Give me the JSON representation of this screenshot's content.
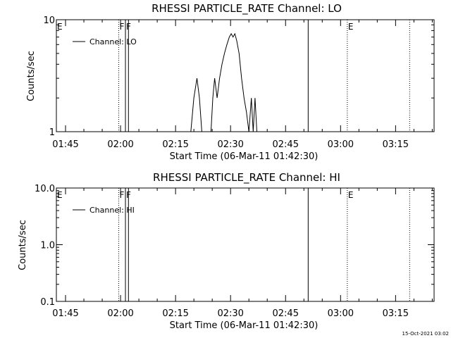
{
  "footer_timestamp": "15-Oct-2021 03:02",
  "chart_data": [
    {
      "type": "line",
      "title": "RHESSI PARTICLE_RATE Channel: LO",
      "xlabel": "Start Time (06-Mar-11 01:42:30)",
      "ylabel": "Counts/sec",
      "y_scale": "log",
      "xlim": [
        "01:42:30",
        "03:25:30"
      ],
      "ylim": [
        1,
        10
      ],
      "x_ticks": [
        "01:45",
        "02:00",
        "02:15",
        "02:30",
        "02:45",
        "03:00",
        "03:15"
      ],
      "y_ticks": [
        {
          "value": 1,
          "label": "1"
        },
        {
          "value": 10,
          "label": "10"
        }
      ],
      "legend": {
        "placement": "top-left",
        "entries": [
          "Channel: LO"
        ]
      },
      "flags": [
        {
          "label": "E",
          "time": "01:42:30",
          "style": "dotted"
        },
        {
          "label": "F",
          "time": "01:59:30",
          "style": "dotted"
        },
        {
          "label": "F",
          "time": "02:01:20",
          "style": "solid"
        },
        {
          "time": "02:51:10",
          "style": "solid"
        },
        {
          "label": "E",
          "time": "03:01:50",
          "style": "dotted"
        },
        {
          "time": "03:18:50",
          "style": "dotted"
        }
      ],
      "series": [
        {
          "name": "Channel: LO",
          "points": [
            [
              "02:01:20",
              1
            ],
            [
              "02:01:20",
              10
            ],
            [
              "02:02:10",
              10
            ],
            [
              "02:02:10",
              1
            ],
            [
              "02:19:10",
              1
            ],
            [
              "02:20:00",
              2.0
            ],
            [
              "02:20:50",
              3.0
            ],
            [
              "02:21:30",
              2.0
            ],
            [
              "02:22:10",
              1
            ],
            [
              "02:24:40",
              1
            ],
            [
              "02:25:10",
              2.0
            ],
            [
              "02:25:40",
              3.0
            ],
            [
              "02:26:20",
              2.0
            ],
            [
              "02:27:00",
              3.0
            ],
            [
              "02:27:40",
              4.0
            ],
            [
              "02:28:20",
              5.0
            ],
            [
              "02:29:00",
              6.0
            ],
            [
              "02:29:40",
              7.0
            ],
            [
              "02:30:10",
              7.5
            ],
            [
              "02:30:40",
              7.0
            ],
            [
              "02:31:10",
              7.5
            ],
            [
              "02:31:40",
              6.5
            ],
            [
              "02:32:20",
              5.0
            ],
            [
              "02:33:00",
              3.0
            ],
            [
              "02:33:40",
              2.0
            ],
            [
              "02:34:20",
              1.5
            ],
            [
              "02:35:00",
              1
            ],
            [
              "02:35:40",
              2.0
            ],
            [
              "02:36:10",
              1
            ],
            [
              "02:36:40",
              2.0
            ],
            [
              "02:37:10",
              1
            ]
          ]
        }
      ]
    },
    {
      "type": "line",
      "title": "RHESSI PARTICLE_RATE Channel: HI",
      "xlabel": "Start Time (06-Mar-11 01:42:30)",
      "ylabel": "Counts/sec",
      "y_scale": "log",
      "xlim": [
        "01:42:30",
        "03:25:30"
      ],
      "ylim": [
        0.1,
        10
      ],
      "x_ticks": [
        "01:45",
        "02:00",
        "02:15",
        "02:30",
        "02:45",
        "03:00",
        "03:15"
      ],
      "y_ticks": [
        {
          "value": 0.1,
          "label": "0.1"
        },
        {
          "value": 1,
          "label": "1.0"
        },
        {
          "value": 10,
          "label": "10.0"
        }
      ],
      "legend": {
        "placement": "top-left",
        "entries": [
          "Channel: HI"
        ]
      },
      "flags": [
        {
          "label": "E",
          "time": "01:42:30",
          "style": "dotted"
        },
        {
          "label": "F",
          "time": "01:59:30",
          "style": "dotted"
        },
        {
          "label": "F",
          "time": "02:01:20",
          "style": "solid"
        },
        {
          "time": "02:51:10",
          "style": "solid"
        },
        {
          "label": "E",
          "time": "03:01:50",
          "style": "dotted"
        },
        {
          "time": "03:18:50",
          "style": "dotted"
        }
      ],
      "series": [
        {
          "name": "Channel: HI",
          "points": [
            [
              "02:01:20",
              0.1
            ],
            [
              "02:01:20",
              10
            ],
            [
              "02:02:10",
              10
            ],
            [
              "02:02:10",
              0.1
            ]
          ]
        }
      ]
    }
  ]
}
